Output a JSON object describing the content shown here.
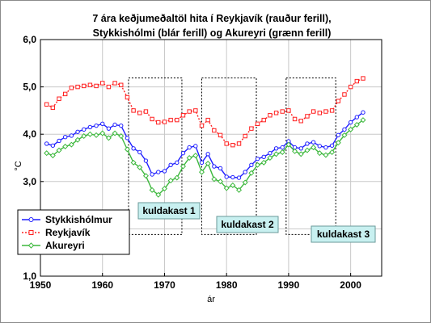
{
  "chart_data": {
    "type": "line",
    "title": [
      "7 ára keðjumeðaltöl hita í Reykjavík (rauður ferill),",
      "Stykkishólmi (blár ferill) og Akureyri (grænn ferill)"
    ],
    "xlabel": "ár",
    "ylabel": "°C",
    "xlim": [
      1950,
      2005
    ],
    "ylim": [
      1.0,
      6.0
    ],
    "xticks": [
      "1950",
      "1960",
      "1970",
      "1980",
      "1990",
      "2000"
    ],
    "yticks": [
      "1,0",
      "2,0",
      "3,0",
      "4,0",
      "5,0",
      "6,0"
    ],
    "grid": true,
    "legend_position": "bottom-left",
    "x": [
      1951,
      1952,
      1953,
      1954,
      1955,
      1956,
      1957,
      1958,
      1959,
      1960,
      1961,
      1962,
      1963,
      1964,
      1965,
      1966,
      1967,
      1968,
      1969,
      1970,
      1971,
      1972,
      1973,
      1974,
      1975,
      1976,
      1977,
      1978,
      1979,
      1980,
      1981,
      1982,
      1983,
      1984,
      1985,
      1986,
      1987,
      1988,
      1989,
      1990,
      1991,
      1992,
      1993,
      1994,
      1995,
      1996,
      1997,
      1998,
      1999,
      2000,
      2001,
      2002
    ],
    "series": [
      {
        "name": "Stykkishólmur",
        "color": "#1f1fff",
        "marker": "circle",
        "dash": "solid",
        "values": [
          3.8,
          3.76,
          3.86,
          3.94,
          3.97,
          4.05,
          4.1,
          4.15,
          4.18,
          4.22,
          4.12,
          4.2,
          4.18,
          3.92,
          3.7,
          3.62,
          3.44,
          3.15,
          3.2,
          3.22,
          3.35,
          3.4,
          3.6,
          3.72,
          3.75,
          3.4,
          3.58,
          3.32,
          3.28,
          3.1,
          3.09,
          3.08,
          3.2,
          3.35,
          3.48,
          3.52,
          3.6,
          3.7,
          3.72,
          3.85,
          3.72,
          3.7,
          3.8,
          3.83,
          3.75,
          3.72,
          3.76,
          3.98,
          4.1,
          4.25,
          4.36,
          4.46
        ]
      },
      {
        "name": "Reykjavík",
        "color": "#ff2020",
        "marker": "square",
        "dash": "dotted",
        "values": [
          4.63,
          4.56,
          4.75,
          4.85,
          4.98,
          5.0,
          5.02,
          5.04,
          5.02,
          5.08,
          5.0,
          5.08,
          5.04,
          4.78,
          4.5,
          4.45,
          4.48,
          4.32,
          4.25,
          4.26,
          4.3,
          4.3,
          4.4,
          4.48,
          4.5,
          4.18,
          4.3,
          4.08,
          3.98,
          3.8,
          3.77,
          3.8,
          3.96,
          4.12,
          4.22,
          4.3,
          4.4,
          4.45,
          4.48,
          4.5,
          4.32,
          4.28,
          4.38,
          4.48,
          4.45,
          4.48,
          4.5,
          4.7,
          4.84,
          5.0,
          5.12,
          5.18
        ]
      },
      {
        "name": "Akureyri",
        "color": "#3db83d",
        "marker": "diamond",
        "dash": "solid",
        "values": [
          3.6,
          3.55,
          3.66,
          3.74,
          3.78,
          3.88,
          3.96,
          4.0,
          3.98,
          4.02,
          3.92,
          4.02,
          3.96,
          3.68,
          3.4,
          3.3,
          3.12,
          2.82,
          2.72,
          2.85,
          3.02,
          3.08,
          3.32,
          3.5,
          3.55,
          3.2,
          3.38,
          3.05,
          3.0,
          2.86,
          2.92,
          2.82,
          2.98,
          3.18,
          3.35,
          3.4,
          3.5,
          3.58,
          3.62,
          3.78,
          3.64,
          3.58,
          3.66,
          3.72,
          3.6,
          3.56,
          3.62,
          3.82,
          3.98,
          4.1,
          4.2,
          4.3
        ]
      }
    ],
    "annotations": [
      {
        "label": "kuldakast 1",
        "x_range": [
          1964.2,
          1972.8
        ],
        "y_range": [
          1.88,
          5.19
        ]
      },
      {
        "label": "kuldakast 2",
        "x_range": [
          1976.0,
          1984.8
        ],
        "y_range": [
          1.88,
          5.19
        ]
      },
      {
        "label": "kuldakast 3",
        "x_range": [
          1989.6,
          1997.6
        ],
        "y_range": [
          1.88,
          5.19
        ]
      }
    ]
  }
}
